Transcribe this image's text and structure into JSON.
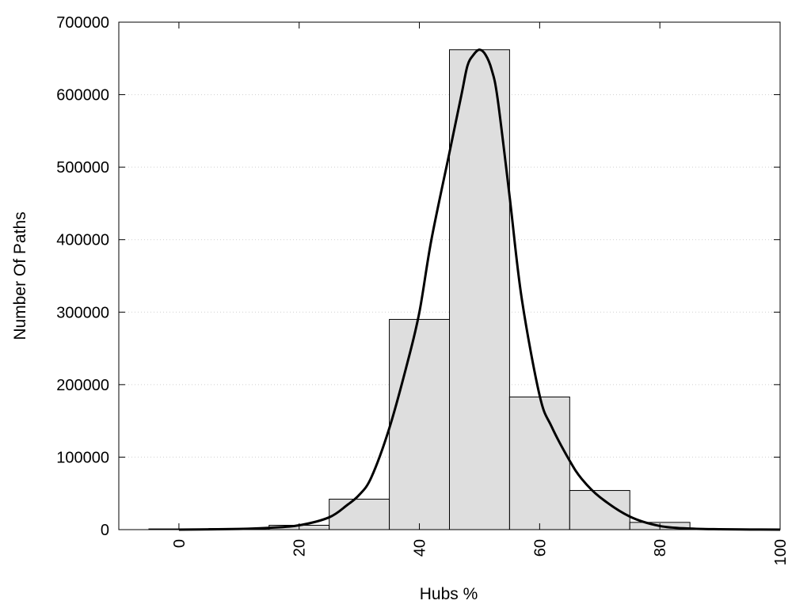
{
  "chart_data": {
    "type": "bar",
    "xlabel": "Hubs %",
    "ylabel": "Number Of Paths",
    "xlim": [
      -10,
      100
    ],
    "ylim": [
      0,
      700000
    ],
    "x_ticks": [
      0,
      20,
      40,
      60,
      80,
      100
    ],
    "y_ticks": [
      0,
      100000,
      200000,
      300000,
      400000,
      500000,
      600000,
      700000
    ],
    "grid": "horizontal dotted",
    "bin_width": 10,
    "bins": [
      {
        "x": 0,
        "value": 1000
      },
      {
        "x": 10,
        "value": 1500
      },
      {
        "x": 20,
        "value": 6000
      },
      {
        "x": 30,
        "value": 42000
      },
      {
        "x": 40,
        "value": 290000
      },
      {
        "x": 50,
        "value": 662000
      },
      {
        "x": 60,
        "value": 183000
      },
      {
        "x": 70,
        "value": 54000
      },
      {
        "x": 80,
        "value": 10000
      },
      {
        "x": 90,
        "value": 1000
      }
    ],
    "curve": {
      "x": [
        0,
        10,
        15,
        20,
        25,
        28,
        30,
        32,
        35,
        38,
        40,
        42,
        45,
        47,
        48,
        49,
        50,
        51,
        52,
        53,
        55,
        57,
        60,
        62,
        65,
        67,
        70,
        75,
        80,
        85,
        90,
        95,
        100
      ],
      "y": [
        0,
        1000,
        2500,
        6000,
        17000,
        34000,
        48000,
        72000,
        140000,
        230000,
        300000,
        400000,
        520000,
        600000,
        640000,
        655000,
        662000,
        655000,
        635000,
        595000,
        460000,
        320000,
        185000,
        142000,
        95000,
        70000,
        45000,
        18000,
        5000,
        1500,
        500,
        200,
        0
      ]
    },
    "colors": {
      "bar_fill": "#dedede",
      "bar_stroke": "#000000",
      "curve": "#000000",
      "grid": "#cfcfcf"
    }
  }
}
